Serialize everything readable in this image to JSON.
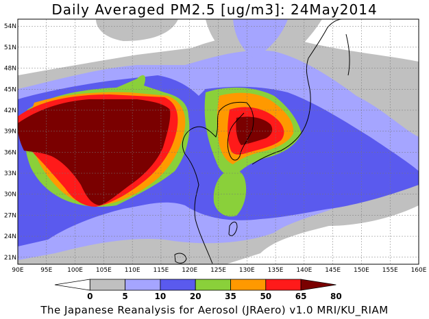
{
  "title": "Daily Averaged PM2.5 [ug/m3]: 24May2014",
  "credit": "The Japanese Reanalysis for Aerosol (JRAero) v1.0 MRI/KU_RIAM",
  "map": {
    "lon_range": [
      90,
      160
    ],
    "lat_range": [
      20,
      55
    ],
    "lon_ticks": [
      "90E",
      "95E",
      "100E",
      "105E",
      "110E",
      "115E",
      "120E",
      "125E",
      "130E",
      "135E",
      "140E",
      "145E",
      "150E",
      "155E",
      "160E"
    ],
    "lat_ticks": [
      "21N",
      "24N",
      "27N",
      "30N",
      "33N",
      "36N",
      "39N",
      "42N",
      "45N",
      "48N",
      "51N",
      "54N"
    ],
    "grid": true
  },
  "colorbar": {
    "levels": [
      "0",
      "5",
      "10",
      "20",
      "35",
      "50",
      "65",
      "80"
    ],
    "colors": [
      "#ffffff",
      "#c0c0c0",
      "#a5a5ff",
      "#5a5aee",
      "#8ad03a",
      "#ff9900",
      "#ff1a1a",
      "#7a0000"
    ]
  }
}
